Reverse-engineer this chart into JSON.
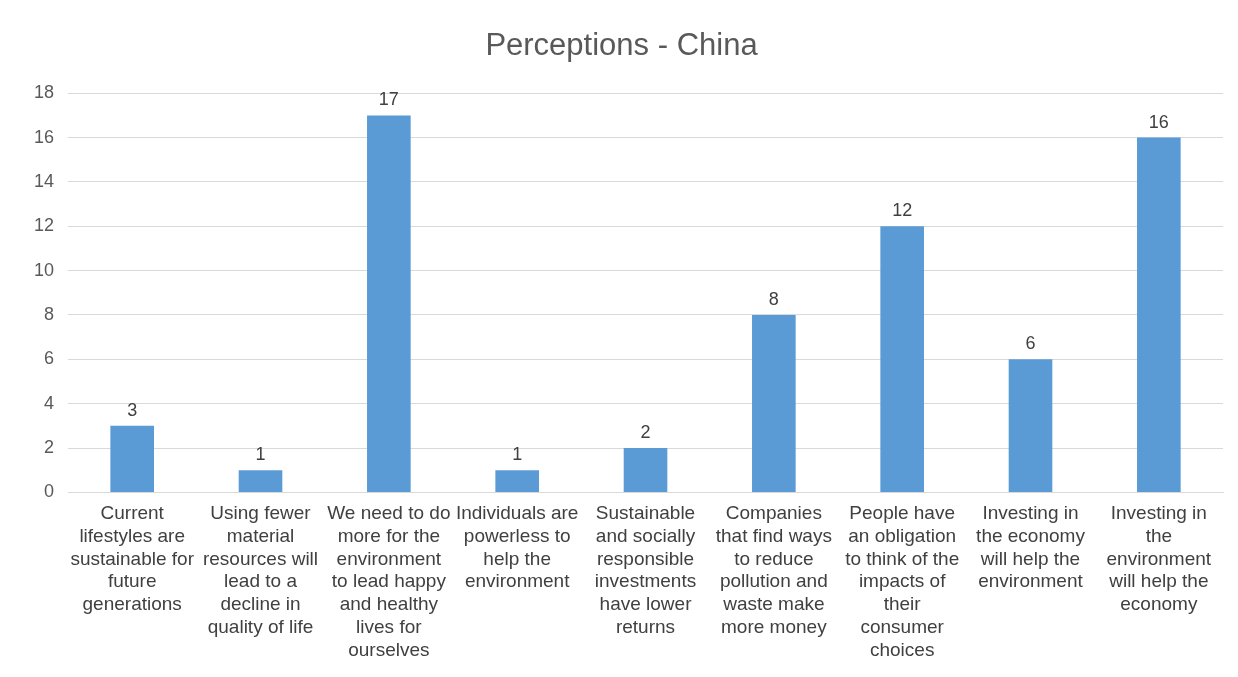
{
  "chart_data": {
    "type": "bar",
    "title": "Perceptions - China",
    "categories": [
      "Current lifestyles are sustainable for future generations",
      "Using fewer material resources will lead to a decline in quality of life",
      "We need to do more for the environment to lead happy and healthy lives for ourselves",
      "Individuals are powerless to help the environment",
      "Sustainable and socially responsible investments have lower returns",
      "Companies that find ways to reduce pollution and waste make more money",
      "People have an obligation to think of the impacts of their consumer choices",
      "Investing in the economy will help the environment",
      "Investing in the environment will help the economy"
    ],
    "values": [
      3,
      1,
      17,
      1,
      2,
      8,
      12,
      6,
      16
    ],
    "color": "#5b9bd5",
    "ylim": [
      0,
      18
    ],
    "yticks": [
      0,
      2,
      4,
      6,
      8,
      10,
      12,
      14,
      16,
      18
    ],
    "grid": "y",
    "legend": false,
    "data_labels": true
  }
}
